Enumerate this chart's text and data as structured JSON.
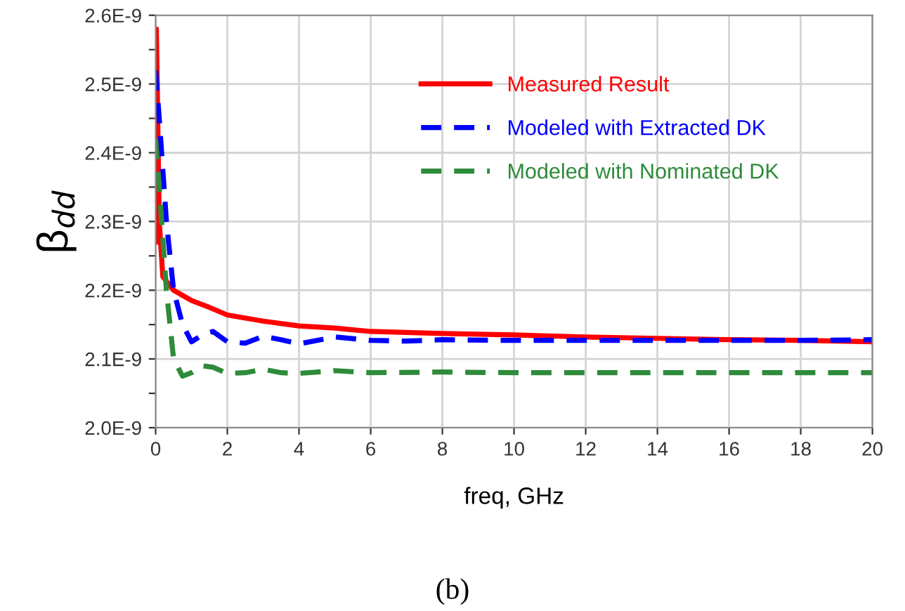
{
  "chart_data": {
    "type": "line",
    "xlabel": "freq, GHz",
    "ylabel": "β$_{dd}$",
    "annotations": [
      "(b)"
    ],
    "xlim": [
      0,
      20
    ],
    "xticks": [
      0,
      2,
      4,
      6,
      8,
      10,
      12,
      14,
      16,
      18,
      20
    ],
    "ylim": [
      2e-09,
      2.6e-09
    ],
    "yticks": [
      {
        "value": 2e-09,
        "label": "2.0E-9"
      },
      {
        "value": 2.05e-09,
        "label": null
      },
      {
        "value": 2.1e-09,
        "label": "2.1E-9"
      },
      {
        "value": 2.15e-09,
        "label": null
      },
      {
        "value": 2.2e-09,
        "label": "2.2E-9"
      },
      {
        "value": 2.25e-09,
        "label": null
      },
      {
        "value": 2.3e-09,
        "label": "2.3E-9"
      },
      {
        "value": 2.35e-09,
        "label": null
      },
      {
        "value": 2.4e-09,
        "label": "2.4E-9"
      },
      {
        "value": 2.45e-09,
        "label": null
      },
      {
        "value": 2.5e-09,
        "label": "2.5E-9"
      },
      {
        "value": 2.55e-09,
        "label": null
      },
      {
        "value": 2.6e-09,
        "label": "2.6E-9"
      }
    ],
    "grid": true,
    "legend": "top",
    "series": [
      {
        "name": "Measured Result",
        "color": "#ff0000",
        "line_style": "solid",
        "x": [
          0,
          0.02,
          0.1,
          0.2,
          0.5,
          1,
          1.5,
          2,
          3,
          4,
          5,
          6,
          8,
          10,
          12,
          14,
          16,
          18,
          20
        ],
        "values": [
          2.27e-09,
          2.58e-09,
          2.3e-09,
          2.22e-09,
          2.2e-09,
          2.185e-09,
          2.175e-09,
          2.164e-09,
          2.155e-09,
          2.148e-09,
          2.145e-09,
          2.14e-09,
          2.137e-09,
          2.135e-09,
          2.132e-09,
          2.13e-09,
          2.128e-09,
          2.127e-09,
          2.125e-09
        ]
      },
      {
        "name": "Modeled with Extracted DK",
        "color": "#0000ff",
        "line_style": "dashed",
        "x": [
          0,
          0.1,
          0.3,
          0.5,
          0.75,
          1,
          1.3,
          1.6,
          2,
          2.5,
          3,
          3.5,
          4,
          5,
          6,
          7,
          8,
          10,
          12,
          14,
          16,
          18,
          20
        ],
        "values": [
          2.52e-09,
          2.45e-09,
          2.3e-09,
          2.2e-09,
          2.15e-09,
          2.125e-09,
          2.135e-09,
          2.14e-09,
          2.125e-09,
          2.123e-09,
          2.133e-09,
          2.128e-09,
          2.122e-09,
          2.132e-09,
          2.127e-09,
          2.126e-09,
          2.128e-09,
          2.127e-09,
          2.127e-09,
          2.127e-09,
          2.127e-09,
          2.127e-09,
          2.128e-09
        ]
      },
      {
        "name": "Modeled with Nominated DK",
        "color": "#2e8b3a",
        "line_style": "dashed",
        "x": [
          0,
          0.1,
          0.3,
          0.5,
          0.75,
          1,
          1.3,
          1.6,
          2,
          2.5,
          3,
          3.5,
          4,
          5,
          6,
          8,
          10,
          12,
          14,
          16,
          18,
          20
        ],
        "values": [
          2.42e-09,
          2.35e-09,
          2.2e-09,
          2.1e-09,
          2.075e-09,
          2.08e-09,
          2.09e-09,
          2.088e-09,
          2.079e-09,
          2.08e-09,
          2.085e-09,
          2.08e-09,
          2.079e-09,
          2.083e-09,
          2.08e-09,
          2.081e-09,
          2.08e-09,
          2.08e-09,
          2.08e-09,
          2.08e-09,
          2.08e-09,
          2.08e-09
        ]
      }
    ]
  }
}
